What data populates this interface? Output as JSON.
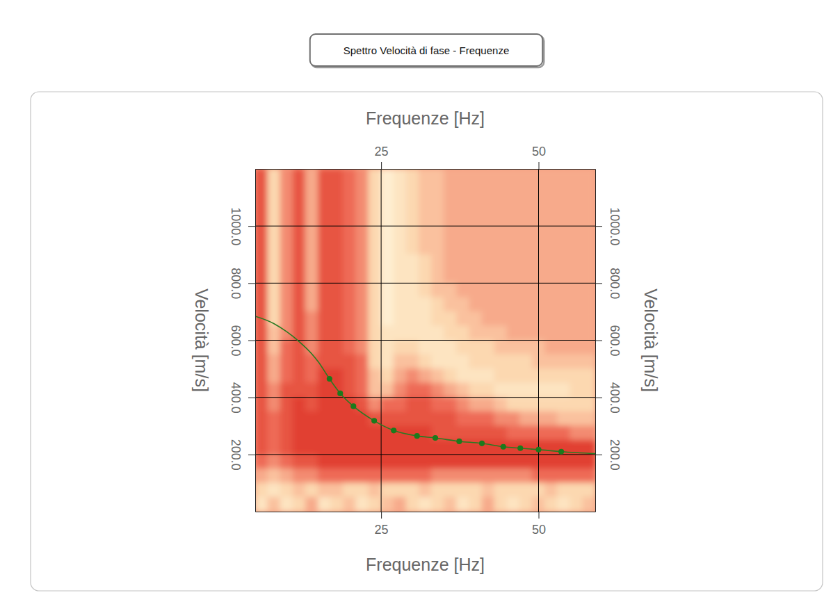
{
  "chart_data": {
    "type": "heatmap",
    "title": "Spettro Velocità di fase - Frequenze",
    "x_label": "Frequenze [Hz]",
    "y_label": "Velocità [m/s]",
    "xlim": [
      5,
      59
    ],
    "ylim": [
      0,
      1200
    ],
    "xticks": [
      25,
      50
    ],
    "yticks": [
      {
        "value": 200,
        "label": "200.0"
      },
      {
        "value": 400,
        "label": "400.0"
      },
      {
        "value": 600,
        "label": "600.0"
      },
      {
        "value": 800,
        "label": "800.0"
      },
      {
        "value": 1000,
        "label": "1000.0"
      }
    ],
    "grid": true,
    "x": [
      6,
      8,
      10,
      12,
      14,
      16,
      18,
      20,
      22,
      24,
      26,
      28,
      30,
      32,
      34,
      36,
      38,
      40,
      42,
      44,
      46,
      48,
      50,
      52,
      54,
      56,
      58
    ],
    "y": [
      1175,
      1125,
      1075,
      1025,
      975,
      925,
      875,
      825,
      775,
      725,
      675,
      625,
      575,
      525,
      475,
      425,
      375,
      325,
      275,
      225,
      175,
      125,
      75,
      25
    ],
    "zlim": [
      0,
      10
    ],
    "z": [
      [
        8,
        3,
        6,
        8,
        5,
        8,
        8,
        7,
        6,
        3,
        1,
        2,
        3,
        4,
        4,
        5,
        5,
        5,
        5,
        5,
        5,
        5,
        5,
        5,
        5,
        5,
        5
      ],
      [
        8,
        3,
        6,
        8,
        5,
        8,
        8,
        7,
        6,
        3,
        1,
        2,
        3,
        4,
        4,
        5,
        5,
        5,
        5,
        5,
        5,
        5,
        5,
        5,
        5,
        5,
        5
      ],
      [
        8,
        3,
        6,
        8,
        5,
        8,
        8,
        7,
        6,
        3,
        1,
        2,
        3,
        4,
        4,
        5,
        5,
        5,
        5,
        5,
        5,
        5,
        5,
        5,
        5,
        5,
        5
      ],
      [
        8,
        3,
        6,
        8,
        5,
        8,
        8,
        7,
        6,
        3,
        1,
        2,
        3,
        4,
        4,
        5,
        5,
        5,
        5,
        5,
        5,
        5,
        5,
        5,
        5,
        5,
        5
      ],
      [
        8,
        3,
        6,
        8,
        5,
        8,
        8,
        7,
        6,
        3,
        1,
        2,
        3,
        4,
        4,
        5,
        5,
        5,
        5,
        5,
        5,
        5,
        5,
        5,
        5,
        5,
        5
      ],
      [
        8,
        3,
        6,
        8,
        5,
        8,
        8,
        7,
        6,
        3,
        1,
        2,
        3,
        4,
        4,
        5,
        5,
        5,
        5,
        5,
        5,
        5,
        5,
        5,
        5,
        5,
        5
      ],
      [
        8,
        3,
        6,
        8,
        5,
        8,
        8,
        7,
        6,
        3,
        1,
        2,
        2,
        3,
        4,
        5,
        5,
        5,
        5,
        5,
        5,
        5,
        5,
        5,
        5,
        5,
        5
      ],
      [
        8,
        3,
        6,
        8,
        5,
        8,
        8,
        7,
        6,
        3,
        1,
        2,
        2,
        3,
        4,
        5,
        5,
        5,
        5,
        5,
        5,
        5,
        5,
        5,
        5,
        5,
        5
      ],
      [
        8,
        3,
        6,
        8,
        5,
        8,
        8,
        7,
        6,
        3,
        1,
        2,
        2,
        3,
        4,
        4,
        5,
        5,
        5,
        5,
        5,
        5,
        5,
        5,
        5,
        5,
        5
      ],
      [
        8,
        3,
        6,
        8,
        5,
        8,
        8,
        7,
        6,
        3,
        1,
        2,
        2,
        2,
        3,
        4,
        4,
        5,
        5,
        5,
        5,
        5,
        5,
        5,
        5,
        5,
        5
      ],
      [
        8,
        3,
        6,
        8,
        6,
        8,
        8,
        7,
        6,
        3,
        1,
        2,
        2,
        2,
        3,
        3,
        4,
        4,
        5,
        5,
        5,
        5,
        5,
        5,
        5,
        5,
        5
      ],
      [
        8,
        4,
        6,
        8,
        6,
        8,
        8,
        7,
        6,
        3,
        2,
        2,
        2,
        2,
        2,
        3,
        3,
        4,
        4,
        4,
        5,
        5,
        5,
        5,
        5,
        5,
        5
      ],
      [
        8,
        4,
        7,
        8,
        6,
        8,
        8,
        7,
        6,
        3,
        2,
        3,
        3,
        2,
        2,
        2,
        3,
        3,
        3,
        4,
        4,
        4,
        4,
        5,
        5,
        5,
        5
      ],
      [
        8,
        5,
        7,
        8,
        7,
        8,
        8,
        8,
        7,
        3,
        2,
        4,
        4,
        3,
        2,
        2,
        2,
        3,
        3,
        3,
        3,
        3,
        4,
        4,
        4,
        4,
        4
      ],
      [
        8,
        5,
        7,
        8,
        7,
        9,
        9,
        8,
        7,
        4,
        3,
        5,
        6,
        5,
        4,
        3,
        2,
        2,
        2,
        3,
        3,
        3,
        3,
        3,
        3,
        3,
        3
      ],
      [
        8,
        6,
        8,
        8,
        8,
        9,
        9,
        8,
        7,
        4,
        4,
        6,
        7,
        7,
        6,
        5,
        4,
        3,
        3,
        2,
        2,
        2,
        2,
        2,
        2,
        3,
        3
      ],
      [
        8,
        6,
        8,
        9,
        8,
        9,
        9,
        9,
        8,
        6,
        7,
        7,
        8,
        8,
        7,
        7,
        6,
        5,
        5,
        4,
        3,
        3,
        3,
        3,
        3,
        3,
        3
      ],
      [
        8,
        7,
        8,
        9,
        9,
        9,
        9,
        9,
        9,
        8,
        8,
        8,
        8,
        8,
        8,
        8,
        7,
        7,
        7,
        6,
        6,
        5,
        5,
        5,
        4,
        4,
        4
      ],
      [
        8,
        7,
        8,
        9,
        9,
        9,
        9,
        9,
        9,
        9,
        9,
        9,
        9,
        9,
        8,
        8,
        8,
        8,
        8,
        8,
        7,
        7,
        7,
        7,
        7,
        6,
        6
      ],
      [
        8,
        7,
        8,
        9,
        9,
        9,
        9,
        9,
        9,
        9,
        9,
        9,
        9,
        9,
        9,
        9,
        9,
        9,
        9,
        9,
        9,
        9,
        9,
        9,
        9,
        9,
        9
      ],
      [
        7,
        6,
        7,
        8,
        8,
        9,
        9,
        9,
        9,
        9,
        9,
        9,
        9,
        9,
        9,
        9,
        9,
        9,
        9,
        9,
        9,
        9,
        9,
        9,
        9,
        9,
        9
      ],
      [
        5,
        4,
        5,
        6,
        6,
        7,
        7,
        7,
        7,
        7,
        7,
        7,
        7,
        7,
        6,
        6,
        6,
        6,
        6,
        6,
        6,
        6,
        7,
        7,
        7,
        7,
        7
      ],
      [
        3,
        2,
        3,
        4,
        3,
        4,
        4,
        3,
        3,
        4,
        3,
        3,
        3,
        4,
        3,
        3,
        3,
        3,
        4,
        3,
        3,
        3,
        3,
        4,
        3,
        3,
        3
      ],
      [
        2,
        4,
        2,
        3,
        5,
        2,
        3,
        4,
        2,
        3,
        4,
        5,
        3,
        2,
        3,
        4,
        2,
        3,
        5,
        3,
        2,
        3,
        4,
        3,
        2,
        3,
        4
      ]
    ],
    "series": [
      {
        "type": "line",
        "color": "#2a7a22",
        "line_style": "solid",
        "x": [
          5,
          8,
          10,
          12,
          14,
          15,
          16.8,
          18.5,
          20.6,
          23.9,
          27,
          30.7,
          33.6,
          37.4,
          41,
          44.4,
          47.1,
          50,
          53.6,
          59
        ],
        "values": [
          684,
          658,
          630,
          595,
          552,
          525,
          465,
          414,
          369,
          318,
          284,
          265,
          258,
          246,
          239,
          227,
          222,
          217,
          210,
          203
        ]
      },
      {
        "type": "scatter",
        "color": "#1c7a1c",
        "marker": "circle",
        "x": [
          16.8,
          18.5,
          20.6,
          23.9,
          27,
          30.7,
          33.6,
          37.4,
          41,
          44.4,
          47.1,
          50,
          53.6
        ],
        "values": [
          465,
          414,
          369,
          318,
          284,
          265,
          258,
          246,
          239,
          227,
          222,
          217,
          210
        ]
      }
    ]
  }
}
